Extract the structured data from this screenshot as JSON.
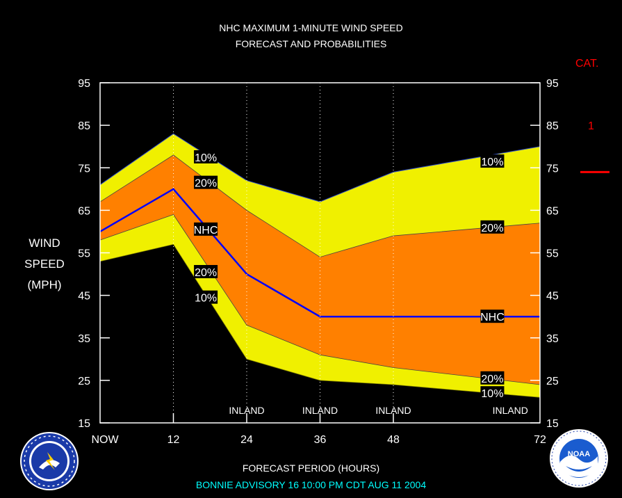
{
  "title_line1": "NHC MAXIMUM 1-MINUTE WIND SPEED",
  "title_line2": "FORECAST AND PROBABILITIES",
  "category": {
    "label": "CAT.",
    "value": "1"
  },
  "footer": {
    "xlabel": "FORECAST PERIOD (HOURS)",
    "advisory": "BONNIE    ADVISORY  16  10:00  PM  CDT  AUG  11  2004"
  },
  "colors": {
    "yellow_band": "#f0f000",
    "orange_band": "#ff8000",
    "nhc_line": "#0000ff",
    "category_line": "#ff0000",
    "footer_text": "#00ffff"
  },
  "logos": {
    "left": "noaa-nws-logo",
    "right": "noaa-logo"
  },
  "chart_data": {
    "type": "area",
    "ylabel": [
      "WIND",
      "SPEED",
      "(MPH)"
    ],
    "xlabel": "FORECAST PERIOD (HOURS)",
    "ylim": [
      15,
      95
    ],
    "xlim": [
      0,
      72
    ],
    "yticks": [
      15,
      25,
      35,
      45,
      55,
      65,
      75,
      85,
      95
    ],
    "xticks": [
      {
        "x": 0,
        "label": "NOW"
      },
      {
        "x": 12,
        "label": "12"
      },
      {
        "x": 24,
        "label": "24"
      },
      {
        "x": 36,
        "label": "36"
      },
      {
        "x": 48,
        "label": "48"
      },
      {
        "x": 72,
        "label": "72"
      }
    ],
    "series": [
      {
        "name": "10%",
        "role": "upper_10",
        "x": [
          0,
          12,
          24,
          36,
          48,
          72
        ],
        "values": [
          71,
          83,
          72,
          67,
          74,
          80
        ]
      },
      {
        "name": "20%",
        "role": "upper_20",
        "x": [
          0,
          12,
          24,
          36,
          48,
          72
        ],
        "values": [
          67,
          78,
          65,
          54,
          59,
          62
        ]
      },
      {
        "name": "NHC",
        "role": "forecast",
        "x": [
          0,
          12,
          24,
          36,
          48,
          72
        ],
        "values": [
          60,
          70,
          50,
          40,
          40,
          40
        ]
      },
      {
        "name": "20%",
        "role": "lower_20",
        "x": [
          0,
          12,
          24,
          36,
          48,
          72
        ],
        "values": [
          58,
          64,
          38,
          31,
          28,
          24
        ]
      },
      {
        "name": "10%",
        "role": "lower_10",
        "x": [
          0,
          12,
          24,
          36,
          48,
          72
        ],
        "values": [
          53,
          57,
          30,
          25,
          24,
          21
        ]
      }
    ],
    "labels": [
      {
        "text": "10%",
        "x": 17.3,
        "y": 77.5
      },
      {
        "text": "20%",
        "x": 17.3,
        "y": 71.5
      },
      {
        "text": "NHC",
        "x": 17.3,
        "y": 60.5
      },
      {
        "text": "20%",
        "x": 17.3,
        "y": 50.5
      },
      {
        "text": "10%",
        "x": 17.3,
        "y": 44.5
      },
      {
        "text": "10%",
        "x": 64.2,
        "y": 76.5
      },
      {
        "text": "20%",
        "x": 64.2,
        "y": 61
      },
      {
        "text": "NHC",
        "x": 64.2,
        "y": 40
      },
      {
        "text": "20%",
        "x": 64.2,
        "y": 25.5
      },
      {
        "text": "10%",
        "x": 64.2,
        "y": 22
      }
    ],
    "inland": [
      {
        "text": "INLAND",
        "x": 24
      },
      {
        "text": "INLAND",
        "x": 36
      },
      {
        "text": "INLAND",
        "x": 48
      },
      {
        "text": "INLAND",
        "x": 66
      }
    ],
    "category_threshold": 74
  }
}
